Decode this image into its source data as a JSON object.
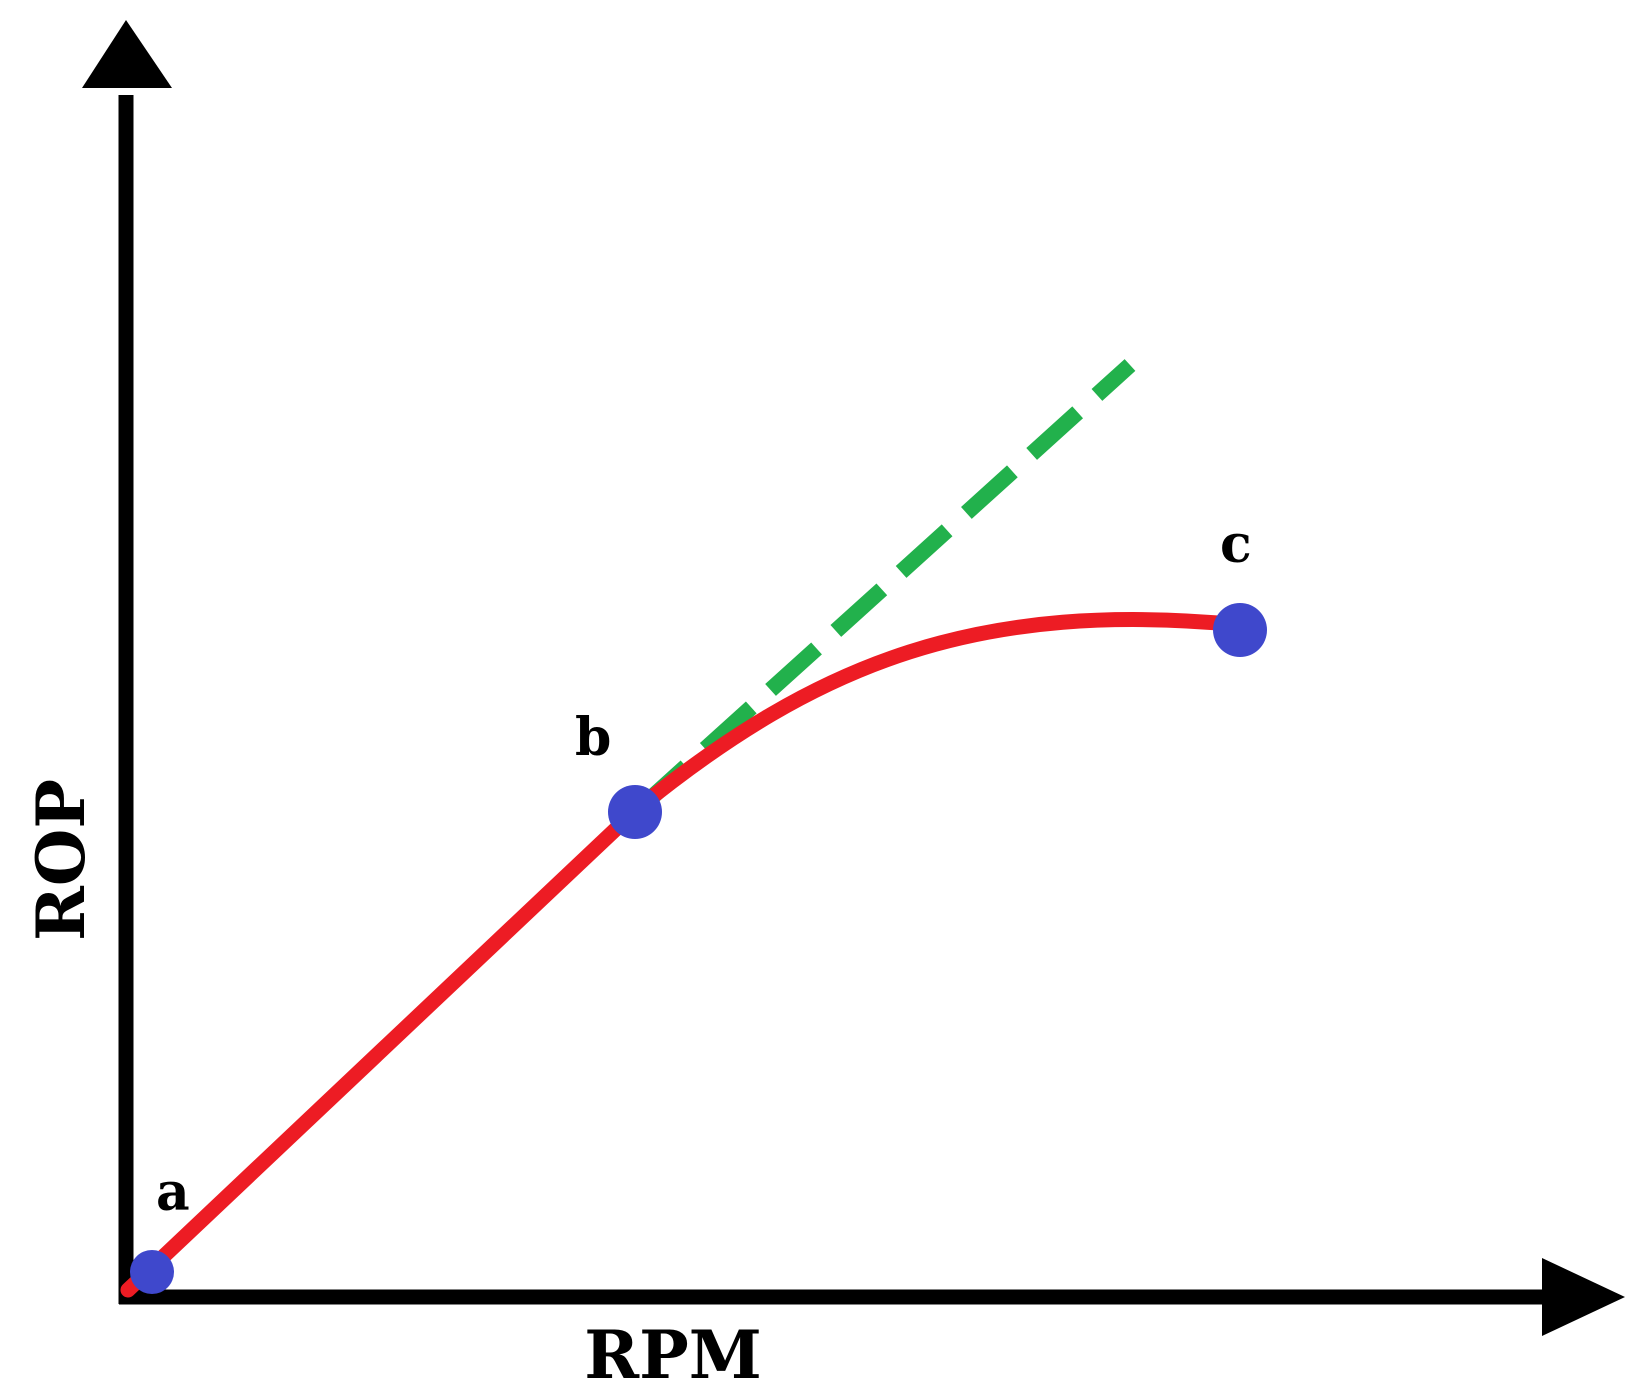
{
  "colors": {
    "axes": "#000000",
    "curve": "#ed1c24",
    "tangent": "#22b14c",
    "points": "#3f48cc",
    "background": "#ffffff"
  },
  "axes": {
    "x_label": "RPM",
    "y_label": "ROP"
  },
  "points": [
    {
      "id": "a",
      "label": "a"
    },
    {
      "id": "b",
      "label": "b"
    },
    {
      "id": "c",
      "label": "c"
    }
  ],
  "lines": {
    "actual_curve": "solid",
    "extrapolated_linear": "dashed"
  }
}
